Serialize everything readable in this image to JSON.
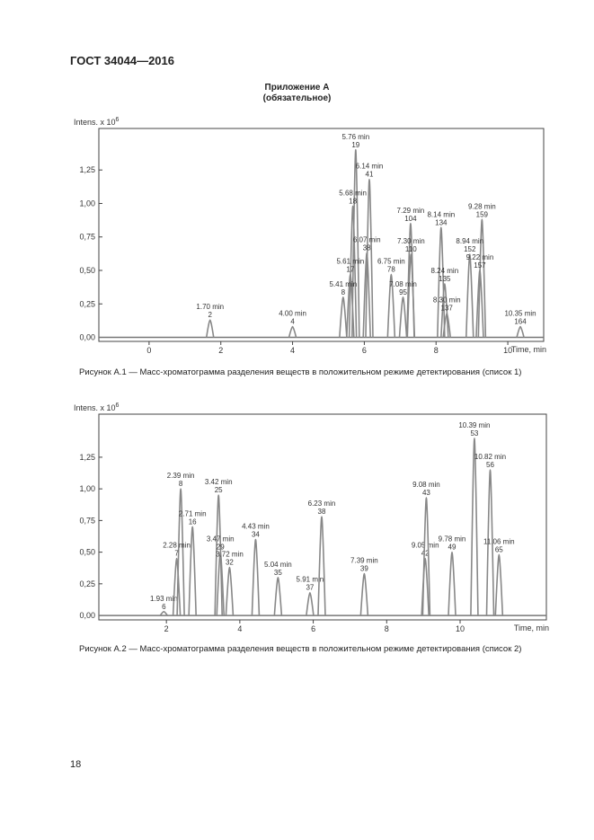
{
  "header": {
    "title": "ГОСТ 34044—2016"
  },
  "appendix": {
    "title": "Приложение А",
    "subtitle": "(обязательное)"
  },
  "chart_data": [
    {
      "type": "line",
      "y_label": "Intens. x 10",
      "y_label_exp": "6",
      "x_label": "Time, min",
      "caption": "Рисунок А.1 — Масс-хроматограмма разделения веществ в положительном режиме детектирования (список 1)",
      "xlim": [
        -1.4,
        11
      ],
      "xticks": [
        0,
        2,
        4,
        6,
        8,
        10
      ],
      "ylim": [
        -0.03,
        1.56
      ],
      "yticks": [
        {
          "value": 0,
          "label": "0,00"
        },
        {
          "value": 0.25,
          "label": "0,25"
        },
        {
          "value": 0.5,
          "label": "0,50"
        },
        {
          "value": 0.75,
          "label": "0,75"
        },
        {
          "value": 1,
          "label": "1,00"
        },
        {
          "value": 1.25,
          "label": "1,25"
        }
      ],
      "peaks": [
        {
          "x": 1.7,
          "y": 0.13,
          "label": "1.70 min",
          "number": "2"
        },
        {
          "x": 4.0,
          "y": 0.08,
          "label": "4.00 min",
          "number": "4"
        },
        {
          "x": 5.76,
          "y": 1.4,
          "label": "5.76 min",
          "number": "19"
        },
        {
          "x": 6.14,
          "y": 1.18,
          "label": "6.14 min",
          "number": "41"
        },
        {
          "x": 5.68,
          "y": 0.98,
          "label": "5.68 min",
          "number": "18"
        },
        {
          "x": 7.29,
          "y": 0.85,
          "label": "7.29 min",
          "number": "104"
        },
        {
          "x": 8.14,
          "y": 0.82,
          "label": "8.14 min",
          "number": "134"
        },
        {
          "x": 9.28,
          "y": 0.88,
          "label": "9.28 min",
          "number": "159"
        },
        {
          "x": 8.94,
          "y": 0.62,
          "label": "8.94 min",
          "number": "152"
        },
        {
          "x": 9.22,
          "y": 0.5,
          "label": "9.22 min",
          "number": "157"
        },
        {
          "x": 7.3,
          "y": 0.62,
          "label": "7.30 min",
          "number": "110"
        },
        {
          "x": 6.07,
          "y": 0.63,
          "label": "6.07 min",
          "number": "38"
        },
        {
          "x": 5.61,
          "y": 0.47,
          "label": "5.61 min",
          "number": "17"
        },
        {
          "x": 6.75,
          "y": 0.47,
          "label": "6.75 min",
          "number": "78"
        },
        {
          "x": 8.24,
          "y": 0.4,
          "label": "8.24 min",
          "number": "135"
        },
        {
          "x": 5.41,
          "y": 0.3,
          "label": "5.41 min",
          "number": "8"
        },
        {
          "x": 7.08,
          "y": 0.3,
          "label": "7.08 min",
          "number": "95"
        },
        {
          "x": 8.3,
          "y": 0.18,
          "label": "8.30 min",
          "number": "137"
        },
        {
          "x": 10.35,
          "y": 0.08,
          "label": "10.35 min",
          "number": "164"
        }
      ]
    },
    {
      "type": "line",
      "y_label": "Intens. x 10",
      "y_label_exp": "6",
      "x_label": "Time, min",
      "caption": "Рисунок А.2 — Масс-хроматограмма разделения веществ в положительном режиме детектирования (список 2)",
      "xlim": [
        0.16,
        12.35
      ],
      "xticks": [
        2,
        4,
        6,
        8,
        10
      ],
      "ylim": [
        -0.035,
        1.59
      ],
      "yticks": [
        {
          "value": 0,
          "label": "0,00"
        },
        {
          "value": 0.25,
          "label": "0,25"
        },
        {
          "value": 0.5,
          "label": "0,50"
        },
        {
          "value": 0.75,
          "label": "0,75"
        },
        {
          "value": 1,
          "label": "1,00"
        },
        {
          "value": 1.25,
          "label": "1,25"
        }
      ],
      "peaks": [
        {
          "x": 1.93,
          "y": 0.03,
          "label": "1.93 min",
          "number": "6"
        },
        {
          "x": 2.39,
          "y": 1.0,
          "label": "2.39 min",
          "number": "8"
        },
        {
          "x": 2.28,
          "y": 0.45,
          "label": "2.28 min",
          "number": "7"
        },
        {
          "x": 2.71,
          "y": 0.7,
          "label": "2.71 min",
          "number": "16"
        },
        {
          "x": 3.42,
          "y": 0.95,
          "label": "3.42 min",
          "number": "25"
        },
        {
          "x": 3.47,
          "y": 0.5,
          "label": "3.47 min",
          "number": "29"
        },
        {
          "x": 3.72,
          "y": 0.38,
          "label": "3.72 min",
          "number": "32"
        },
        {
          "x": 4.43,
          "y": 0.6,
          "label": "4.43 min",
          "number": "34"
        },
        {
          "x": 5.04,
          "y": 0.3,
          "label": "5.04 min",
          "number": "35"
        },
        {
          "x": 5.91,
          "y": 0.18,
          "label": "5.91 min",
          "number": "37"
        },
        {
          "x": 6.23,
          "y": 0.78,
          "label": "6.23 min",
          "number": "38"
        },
        {
          "x": 7.39,
          "y": 0.33,
          "label": "7.39 min",
          "number": "39"
        },
        {
          "x": 9.05,
          "y": 0.45,
          "label": "9.05 min",
          "number": "42"
        },
        {
          "x": 9.08,
          "y": 0.93,
          "label": "9.08 min",
          "number": "43"
        },
        {
          "x": 9.78,
          "y": 0.5,
          "label": "9.78 min",
          "number": "49"
        },
        {
          "x": 10.39,
          "y": 1.4,
          "label": "10.39 min",
          "number": "53"
        },
        {
          "x": 10.82,
          "y": 1.15,
          "label": "10.82 min",
          "number": "56"
        },
        {
          "x": 11.06,
          "y": 0.48,
          "label": "11.06 min",
          "number": "65"
        }
      ]
    }
  ],
  "footer": {
    "page_number": "18"
  }
}
